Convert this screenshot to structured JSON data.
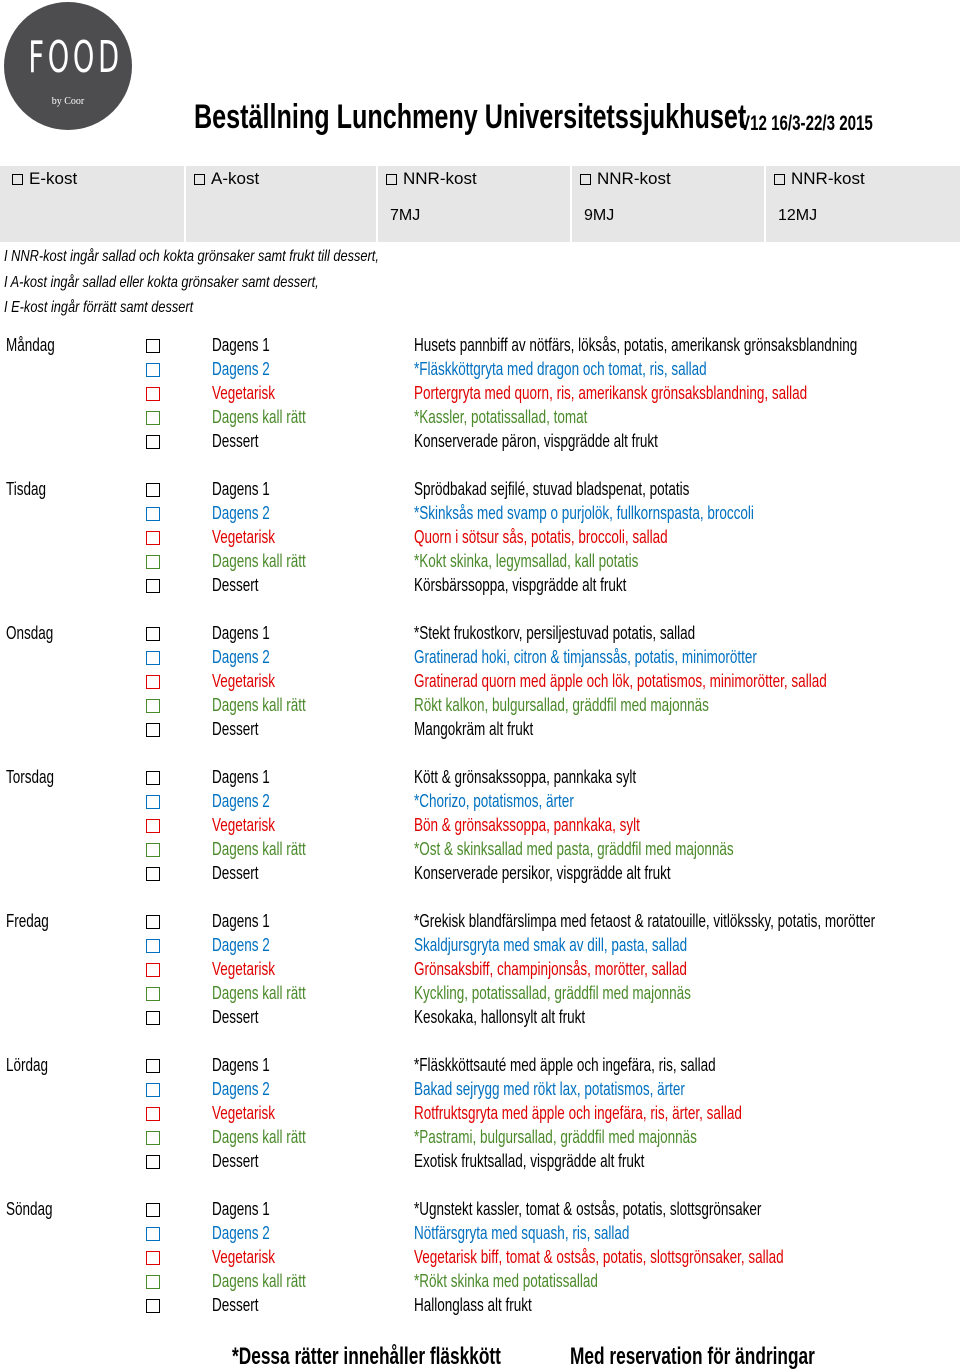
{
  "brand": {
    "logo_text": "FOOD",
    "logo_subtext": "by Coor",
    "logo_bg": "#4d4d4f"
  },
  "header": {
    "title": "Beställning Lunchmeny Universitetssjukhuset",
    "version": "V12 16/3-22/3 2015"
  },
  "diet_options": [
    {
      "label": "E-kost",
      "energy": ""
    },
    {
      "label": "A-kost",
      "energy": ""
    },
    {
      "label": "NNR-kost",
      "energy": "7MJ"
    },
    {
      "label": "NNR-kost",
      "energy": "9MJ"
    },
    {
      "label": "NNR-kost",
      "energy": "12MJ"
    }
  ],
  "notes": [
    "I NNR-kost ingår sallad och kokta grönsaker samt frukt till dessert,",
    "I A-kost ingår sallad eller kokta grönsaker samt dessert,",
    "I E-kost ingår förrätt samt dessert"
  ],
  "category_colors": {
    "Dagens 1": "#000000",
    "Dagens 2": "#0070c0",
    "Vegetarisk": "#e00000",
    "Dagens kall rätt": "#4a8a2a",
    "Dessert": "#000000"
  },
  "categories": [
    "Dagens 1",
    "Dagens 2",
    "Vegetarisk",
    "Dagens kall rätt",
    "Dessert"
  ],
  "days": [
    {
      "name": "Måndag",
      "dishes": [
        "Husets pannbiff av nötfärs, löksås, potatis, amerikansk grönsaksblandning",
        "*Fläskköttgryta med dragon och tomat, ris, sallad",
        "Portergryta med quorn, ris, amerikansk grönsaksblandning, sallad",
        "*Kassler, potatissallad, tomat",
        "Konserverade päron, vispgrädde alt frukt"
      ]
    },
    {
      "name": "Tisdag",
      "dishes": [
        "Sprödbakad sejfilé, stuvad bladspenat, potatis",
        "*Skinksås med svamp o purjolök, fullkornspasta, broccoli",
        "Quorn i sötsur sås, potatis, broccoli, sallad",
        "*Kokt skinka, legymsallad, kall potatis",
        "Körsbärssoppa, vispgrädde alt frukt"
      ]
    },
    {
      "name": "Onsdag",
      "dishes": [
        "*Stekt frukostkorv, persiljestuvad potatis, sallad",
        "Gratinerad hoki, citron & timjanssås, potatis, minimorötter",
        "Gratinerad quorn med äpple och lök, potatismos, minimorötter, sallad",
        "Rökt kalkon, bulgursallad, gräddfil med majonnäs",
        "Mangokräm alt frukt"
      ]
    },
    {
      "name": "Torsdag",
      "dishes": [
        "Kött & grönsakssoppa, pannkaka sylt",
        "*Chorizo, potatismos, ärter",
        "Bön & grönsakssoppa, pannkaka, sylt",
        "*Ost & skinksallad med pasta, gräddfil med majonnäs",
        "Konserverade persikor, vispgrädde alt frukt"
      ]
    },
    {
      "name": "Fredag",
      "dishes": [
        "*Grekisk blandfärslimpa med fetaost & ratatouille, vitlökssky, potatis, morötter",
        "Skaldjursgryta med smak av dill, pasta, sallad",
        "Grönsaksbiff, champinjonsås, morötter, sallad",
        "Kyckling, potatissallad, gräddfil med majonnäs",
        "Kesokaka, hallonsylt alt frukt"
      ]
    },
    {
      "name": "Lördag",
      "dishes": [
        "*Fläskköttsauté med äpple och ingefära, ris, sallad",
        "Bakad sejrygg med rökt lax, potatismos, ärter",
        "Rotfruktsgryta med äpple och ingefära, ris, ärter, sallad",
        "*Pastrami, bulgursallad, gräddfil med majonnäs",
        "Exotisk fruktsallad, vispgrädde alt frukt"
      ]
    },
    {
      "name": "Söndag",
      "dishes": [
        "*Ugnstekt kassler, tomat & ostsås, potatis, slottsgrönsaker",
        "Nötfärsgryta med squash, ris, sallad",
        "Vegetarisk biff, tomat & ostsås, potatis, slottsgrönsaker, sallad",
        "*Rökt skinka med potatissallad",
        "Hallonglass alt frukt"
      ]
    }
  ],
  "footer": {
    "pork_note": "*Dessa rätter innehåller fläskkött",
    "reservation_note": "Med reservation för ändringar"
  }
}
